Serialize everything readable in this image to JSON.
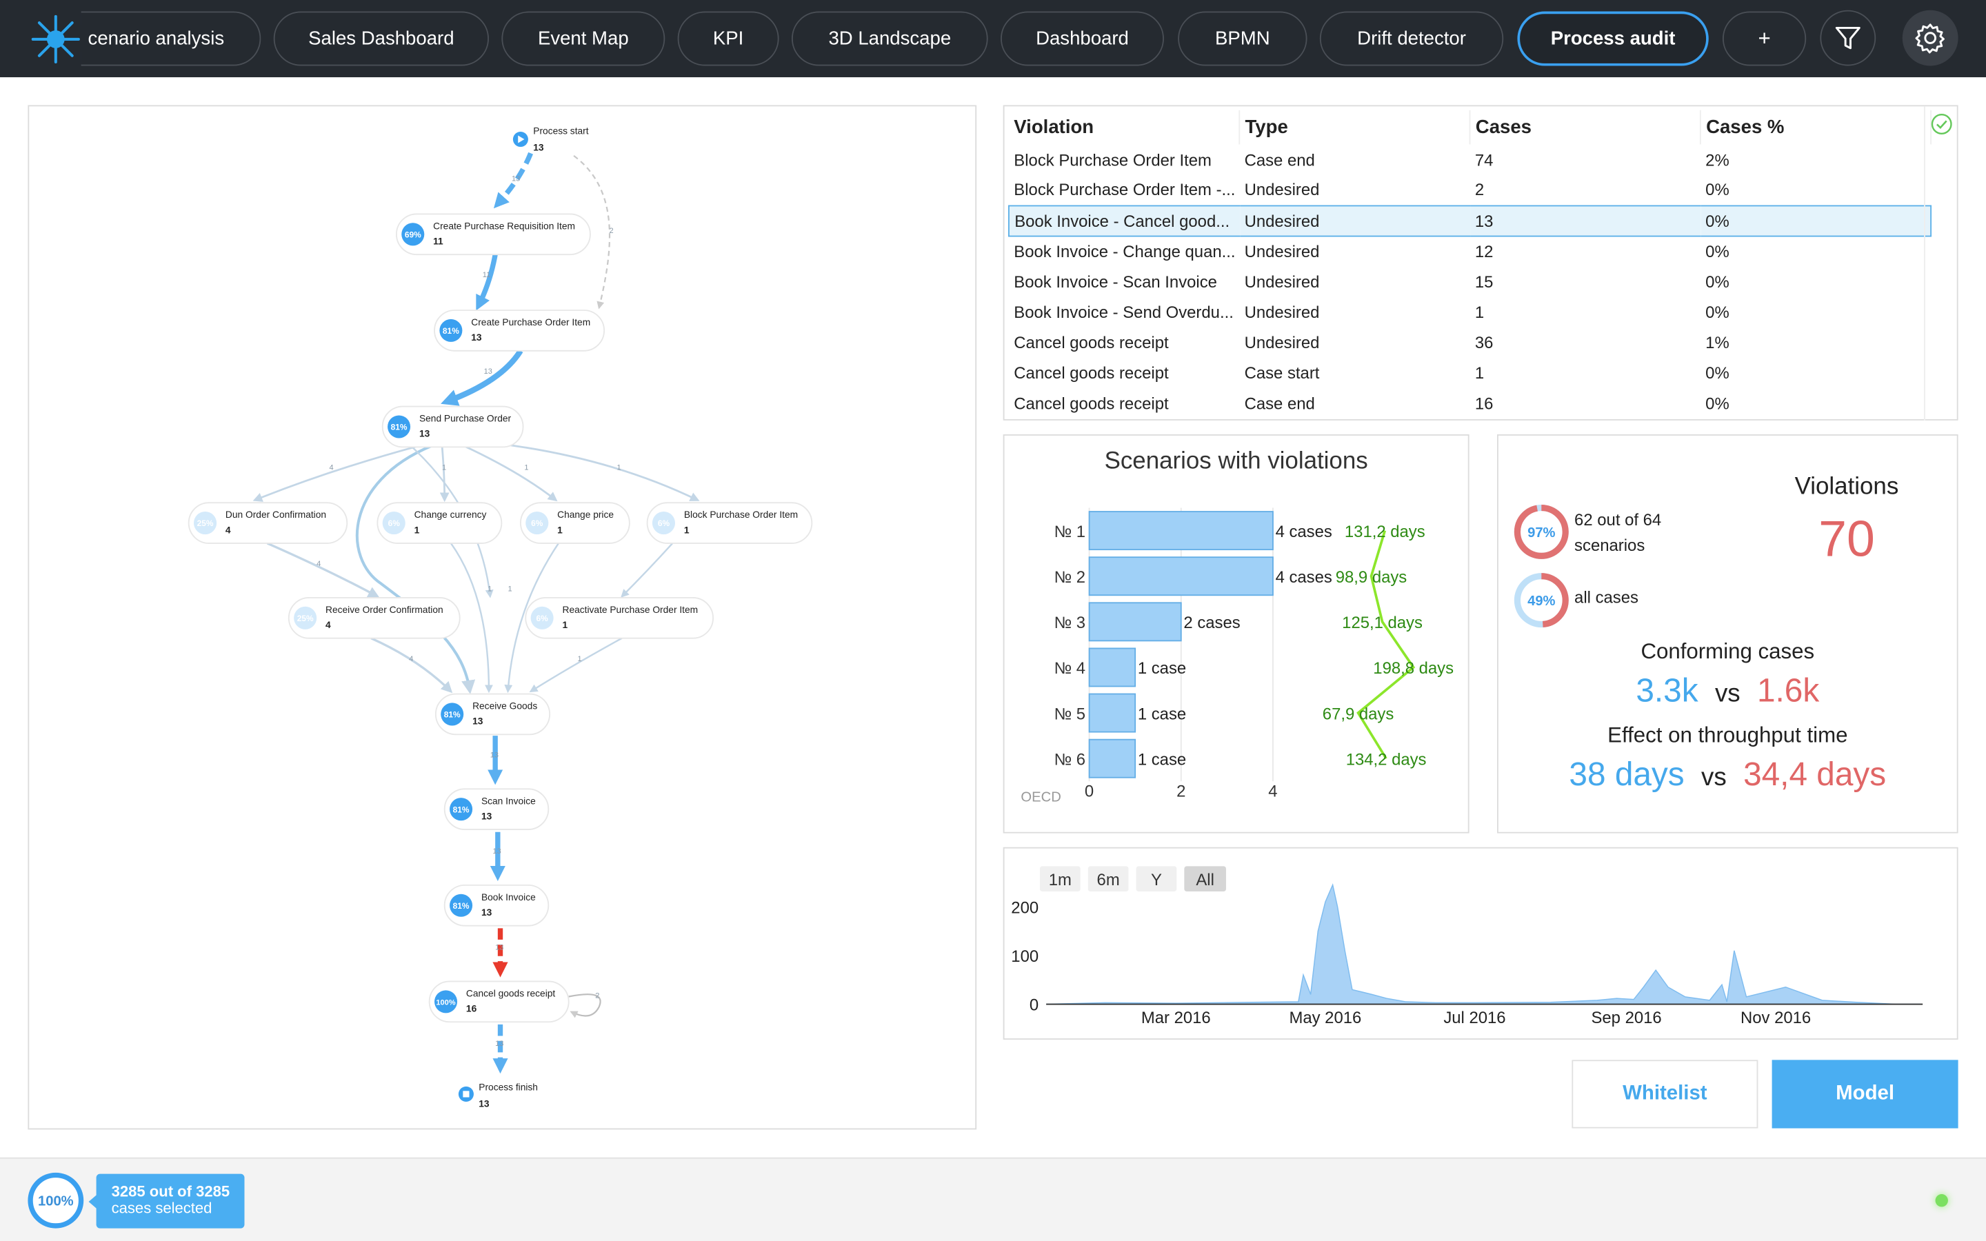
{
  "nav": {
    "tabs": [
      {
        "label": "cenario analysis"
      },
      {
        "label": "Sales Dashboard"
      },
      {
        "label": "Event Map"
      },
      {
        "label": "KPI"
      },
      {
        "label": "3D Landscape"
      },
      {
        "label": "Dashboard"
      },
      {
        "label": "BPMN"
      },
      {
        "label": "Drift detector"
      },
      {
        "label": "Process audit"
      }
    ],
    "add_label": "+",
    "active_tab": "Process audit"
  },
  "process_map": {
    "nodes": [
      {
        "label": "Process start",
        "count": "13"
      },
      {
        "label": "Create Purchase Requisition Item",
        "count": "11",
        "pct": "69%"
      },
      {
        "label": "Create Purchase Order Item",
        "count": "13",
        "pct": "81%"
      },
      {
        "label": "Send Purchase Order",
        "count": "13",
        "pct": "81%"
      },
      {
        "label": "Dun Order Confirmation",
        "count": "4",
        "pct": "25%"
      },
      {
        "label": "Change currency",
        "count": "1",
        "pct": "6%"
      },
      {
        "label": "Change price",
        "count": "1",
        "pct": "6%"
      },
      {
        "label": "Block Purchase Order Item",
        "count": "1",
        "pct": "6%"
      },
      {
        "label": "Receive Order Confirmation",
        "count": "4",
        "pct": "25%"
      },
      {
        "label": "Reactivate Purchase Order Item",
        "count": "1",
        "pct": "6%"
      },
      {
        "label": "Receive Goods",
        "count": "13",
        "pct": "81%"
      },
      {
        "label": "Scan Invoice",
        "count": "13",
        "pct": "81%"
      },
      {
        "label": "Book Invoice",
        "count": "13",
        "pct": "81%"
      },
      {
        "label": "Cancel goods receipt",
        "count": "16",
        "pct": "100%"
      },
      {
        "label": "Process finish",
        "count": "13"
      }
    ],
    "edge_labels": [
      "13",
      "11",
      "2",
      "13",
      "4",
      "1",
      "1",
      "1",
      "4",
      "4",
      "1",
      "1",
      "1",
      "13",
      "13",
      "13",
      "2",
      "13"
    ]
  },
  "violations": {
    "headers": [
      "Violation",
      "Type",
      "Cases",
      "Cases %"
    ],
    "rows": [
      {
        "violation": "Block Purchase Order Item",
        "type": "Case end",
        "cases": "74",
        "pct": "2%"
      },
      {
        "violation": "Block Purchase Order Item -...",
        "type": "Undesired",
        "cases": "2",
        "pct": "0%"
      },
      {
        "violation": "Book Invoice - Cancel good...",
        "type": "Undesired",
        "cases": "13",
        "pct": "0%",
        "selected": true
      },
      {
        "violation": "Book Invoice - Change quan...",
        "type": "Undesired",
        "cases": "12",
        "pct": "0%"
      },
      {
        "violation": "Book Invoice - Scan Invoice",
        "type": "Undesired",
        "cases": "15",
        "pct": "0%"
      },
      {
        "violation": "Book Invoice - Send Overdu...",
        "type": "Undesired",
        "cases": "1",
        "pct": "0%"
      },
      {
        "violation": "Cancel goods receipt",
        "type": "Undesired",
        "cases": "36",
        "pct": "1%"
      },
      {
        "violation": "Cancel goods receipt",
        "type": "Case start",
        "cases": "1",
        "pct": "0%"
      },
      {
        "violation": "Cancel goods receipt",
        "type": "Case end",
        "cases": "16",
        "pct": "0%"
      }
    ]
  },
  "scenarios": {
    "title": "Scenarios with violations",
    "source": "OECD",
    "colors": {
      "bar": "#9fd0f7",
      "duration": "#2d8a13",
      "line": "#8ce62b"
    }
  },
  "summary": {
    "violations_title": "Violations",
    "violations_value": "70",
    "scenarios_pct": "97%",
    "scenarios_text_1": "62 out of 64",
    "scenarios_text_2": "scenarios",
    "cases_pct": "49%",
    "cases_text": "all cases",
    "conforming_title": "Conforming cases",
    "conforming_a": "3.3k",
    "vs": "vs",
    "conforming_b": "1.6k",
    "throughput_title": "Effect on throughput time",
    "throughput_a": "38 days",
    "throughput_b": "34,4 days",
    "colors": {
      "blue": "#45a8ec",
      "red": "#e06666"
    }
  },
  "range_buttons": [
    "1m",
    "6m",
    "Y",
    "All"
  ],
  "actions": {
    "whitelist": "Whitelist",
    "model": "Model"
  },
  "footer": {
    "pct": "100%",
    "line1": "3285 out of 3285",
    "line2": "cases selected"
  },
  "chart_data": [
    {
      "type": "bar",
      "title": "Scenarios with violations",
      "categories": [
        "№ 1",
        "№ 2",
        "№ 3",
        "№ 4",
        "№ 5",
        "№ 6"
      ],
      "values": [
        4,
        4,
        2,
        1,
        1,
        1
      ],
      "value_labels": [
        "4 cases",
        "4 cases",
        "2 cases",
        "1 case",
        "1 case",
        "1 case"
      ],
      "durations": [
        131.2,
        98.9,
        125.1,
        198.8,
        67.9,
        134.2
      ],
      "duration_labels": [
        "131,2 days",
        "98,9 days",
        "125,1 days",
        "198,8 days",
        "67,9 days",
        "134,2 days"
      ],
      "xticks": [
        "0",
        "2",
        "4"
      ],
      "xlim": [
        0,
        4
      ]
    },
    {
      "type": "area",
      "yticks": [
        "0",
        "100",
        "200"
      ],
      "ylim": [
        0,
        260
      ],
      "xticks": [
        "Mar 2016",
        "May 2016",
        "Jul 2016",
        "Sep 2016",
        "Nov 2016"
      ],
      "x": [
        "2016-01-08",
        "2016-02-01",
        "2016-03-01",
        "2016-04-01",
        "2016-04-20",
        "2016-04-22",
        "2016-04-25",
        "2016-04-28",
        "2016-05-01",
        "2016-05-04",
        "2016-05-06",
        "2016-05-09",
        "2016-05-12",
        "2016-05-16",
        "2016-05-20",
        "2016-05-26",
        "2016-06-03",
        "2016-06-15",
        "2016-07-01",
        "2016-08-01",
        "2016-08-20",
        "2016-08-28",
        "2016-09-04",
        "2016-09-08",
        "2016-09-13",
        "2016-09-18",
        "2016-09-25",
        "2016-10-05",
        "2016-10-10",
        "2016-10-12",
        "2016-10-15",
        "2016-10-20",
        "2016-11-05",
        "2016-11-20",
        "2016-12-04",
        "2016-12-20",
        "2016-12-30"
      ],
      "values": [
        0,
        3,
        2,
        4,
        5,
        60,
        20,
        150,
        210,
        245,
        200,
        110,
        30,
        25,
        20,
        12,
        5,
        3,
        3,
        4,
        8,
        12,
        10,
        35,
        70,
        35,
        15,
        8,
        40,
        5,
        110,
        15,
        35,
        8,
        4,
        0,
        0
      ]
    }
  ]
}
